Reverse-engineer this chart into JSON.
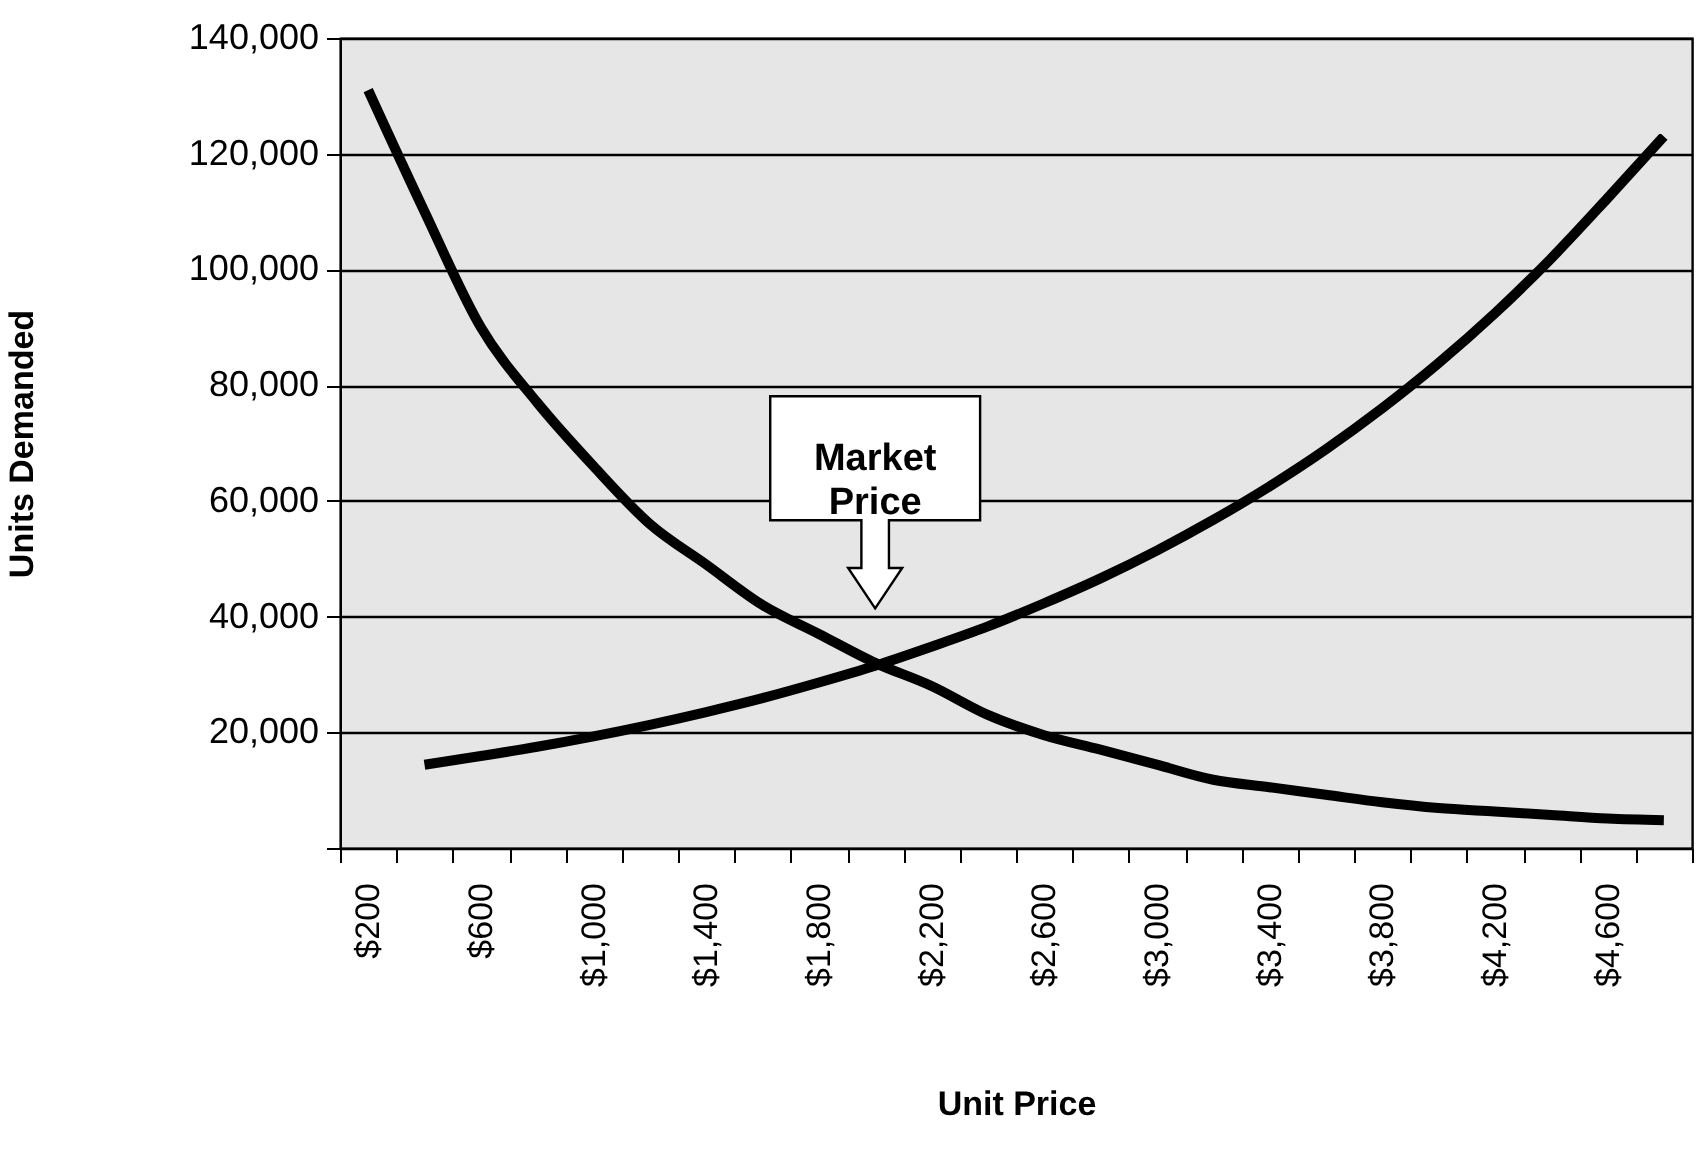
{
  "chart_data": {
    "type": "line",
    "xlabel": "Unit Price",
    "ylabel": "Units Demanded",
    "categories": [
      "$200",
      null,
      "$600",
      null,
      "$1,000",
      null,
      "$1,400",
      null,
      "$1,800",
      null,
      "$2,200",
      null,
      "$2,600",
      null,
      "$3,000",
      null,
      "$3,400",
      null,
      "$3,800",
      null,
      "$4,200",
      null,
      "$4,600",
      null
    ],
    "series": [
      {
        "color": "#000000",
        "values": [
          131000,
          110000,
          90000,
          77000,
          66000,
          56000,
          49000,
          42000,
          37000,
          32000,
          28000,
          23000,
          19500,
          17000,
          14400,
          11800,
          10500,
          9200,
          7900,
          6900,
          6300,
          5700,
          5100,
          4800
        ]
      },
      {
        "color": "#000000",
        "values": [
          null,
          14400,
          15900,
          17500,
          19300,
          21300,
          23500,
          25900,
          28600,
          31500,
          34800,
          38300,
          42300,
          46600,
          51400,
          56700,
          62500,
          68900,
          76000,
          83800,
          92400,
          101900,
          112300,
          123000
        ]
      }
    ],
    "ylim": [
      0,
      140000
    ],
    "yticks": [
      {
        "value": 0,
        "label": null
      },
      {
        "value": 20000,
        "label": "20,000"
      },
      {
        "value": 40000,
        "label": "40,000"
      },
      {
        "value": 60000,
        "label": "60,000"
      },
      {
        "value": 80000,
        "label": "80,000"
      },
      {
        "value": 100000,
        "label": "100,000"
      },
      {
        "value": 120000,
        "label": "120,000"
      },
      {
        "value": 140000,
        "label": "140,000"
      }
    ],
    "grid": "y",
    "line_style": "solid",
    "annotations": [
      "Market Price"
    ]
  }
}
